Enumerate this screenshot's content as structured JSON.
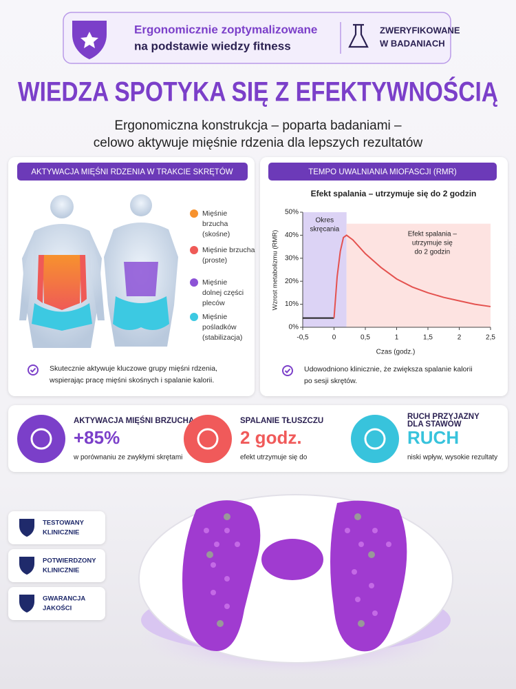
{
  "banner": {
    "lines": [
      "Ergonomicznie zoptymalizowane",
      "na podstawie wiedzy fitness"
    ],
    "verified": [
      "ZWERYFIKOWANE",
      "W BADANIACH"
    ]
  },
  "headline": "WIEDZA SPOTYKA SIĘ Z EFEKTYWNOŚCIĄ",
  "subtitle": [
    "Ergonomiczna konstrukcja – poparta badaniami –",
    "celowo aktywuje mięśnie rdzenia dla lepszych rezultatów"
  ],
  "muscles": {
    "title": "AKTYWACJA MIĘŚNI RDZENIA W TRAKCIE SKRĘTÓW",
    "legend": [
      {
        "lines": [
          "Mięśnie",
          "brzucha",
          "(skośne)"
        ],
        "color": "#f7922e"
      },
      {
        "lines": [
          "Mięśnie brzucha",
          "(proste)"
        ],
        "color": "#ef5a57"
      },
      {
        "lines": [
          "Mięśnie",
          "dolnej części",
          "pleców"
        ],
        "color": "#8c52d6"
      },
      {
        "lines": [
          "Mięśnie",
          "pośladków",
          "(stabilizacja)"
        ],
        "color": "#3cc9e2"
      }
    ],
    "note": [
      "Skutecznie aktywuje kluczowe grupy mięśni rdzenia,",
      "wspierając pracę mięśni skośnych i spalanie kalorii."
    ]
  },
  "rmr": {
    "title": "TEMPO UWALNIANIA MIOFASCJI (RMR)",
    "note": [
      "Udowodniono klinicznie, że zwiększa spalanie kalorii",
      "po sesji skrętów."
    ]
  },
  "chart_data": {
    "type": "line",
    "title": "Efekt spalania – utrzymuje się do 2 godzin",
    "x_label": "Czas (godz.)",
    "y_label": "Wzrost metabolizmu (RMR)",
    "xlim": [
      -0.5,
      2.5
    ],
    "ylim": [
      0,
      50
    ],
    "xticks": [
      {
        "value": -0.5,
        "label": "-0,5"
      },
      0,
      {
        "value": 0.5,
        "label": "0,5"
      },
      1,
      {
        "value": 1.5,
        "label": "1,5"
      },
      2,
      {
        "value": 2.5,
        "label": "2,5"
      }
    ],
    "yticks": [
      {
        "value": 0,
        "label": "0%"
      },
      {
        "value": 10,
        "label": "10%"
      },
      {
        "value": 20,
        "label": "20%"
      },
      {
        "value": 30,
        "label": "30%"
      },
      {
        "value": 40,
        "label": "40%"
      },
      {
        "value": 50,
        "label": "50%"
      }
    ],
    "series": [
      {
        "color": "#222222",
        "x": [
          -0.5,
          -0.25,
          0
        ],
        "values": [
          4,
          4,
          4
        ]
      },
      {
        "color": "#e4524f",
        "x": [
          0,
          0.05,
          0.1,
          0.15,
          0.2,
          0.3,
          0.5,
          0.75,
          1,
          1.25,
          1.5,
          1.75,
          2,
          2.25,
          2.5
        ],
        "values": [
          4,
          22,
          33,
          39,
          40,
          38,
          32,
          26,
          21,
          17.5,
          15,
          13,
          11.5,
          10,
          9
        ]
      }
    ],
    "annotations": [
      {
        "lines": [
          "Okres",
          "skręcania"
        ],
        "x0": -0.5,
        "x1": 0.2,
        "y1": 50,
        "color": "#dcd3f5"
      },
      {
        "lines": [
          "Efekt spalania –",
          "utrzymuje się",
          "do 2 godzin"
        ],
        "x0": 0.2,
        "x1": 2.5,
        "y1": 45,
        "color": "#fde3e1"
      }
    ]
  },
  "stats": [
    {
      "title": [
        "AKTYWACJA MIĘŚNI BRZUCHA"
      ],
      "value": "+85%",
      "text": "w porównaniu ze zwykłymi skrętami",
      "color": "#7b3fc9",
      "value_color": "#7b3fc9"
    },
    {
      "title": [
        "SPALANIE TŁUSZCZU"
      ],
      "value": "2 godz.",
      "text": "efekt utrzymuje się do",
      "color": "#f05a5a",
      "value_color": "#f05a5a"
    },
    {
      "title": [
        "RUCH PRZYJAZNY",
        "DLA STAWÓW"
      ],
      "value": "RUCH",
      "text": "niski wpływ, wysokie rezultaty",
      "color": "#38c3dc",
      "value_color": "#38c3dc"
    }
  ],
  "badges": [
    [
      "TESTOWANY",
      "KLINICZNIE"
    ],
    [
      "POTWIERDZONY",
      "KLINICZNIE"
    ],
    [
      "GWARANCJA",
      "JAKOŚCI"
    ]
  ]
}
